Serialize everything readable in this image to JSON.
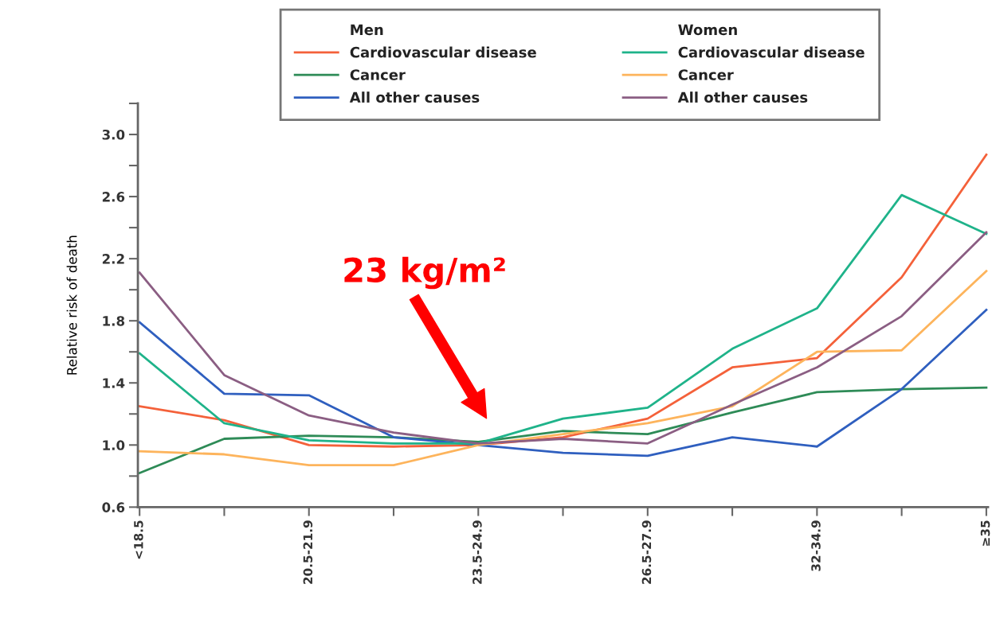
{
  "chart_data": {
    "type": "line",
    "ylabel": "Relative risk of death",
    "categories": [
      "<18.5",
      null,
      "20.5-21.9",
      null,
      "23.5-24.9",
      null,
      "26.5-27.9",
      null,
      "32-34.9",
      null,
      "≥35"
    ],
    "series": [
      {
        "name": "Cardiovascular disease",
        "color": "#f4613a",
        "values": [
          1.25,
          1.16,
          1.0,
          0.99,
          1.0,
          1.05,
          1.17,
          1.5,
          1.56,
          2.08,
          2.87
        ]
      },
      {
        "name": "Cancer",
        "color": "#2e8b57",
        "values": [
          0.82,
          1.04,
          1.06,
          1.05,
          1.02,
          1.09,
          1.07,
          1.21,
          1.34,
          1.36,
          1.37
        ]
      },
      {
        "name": "All other causes",
        "color": "#2f5fbf",
        "values": [
          1.79,
          1.33,
          1.32,
          1.05,
          1.0,
          0.95,
          0.93,
          1.05,
          0.99,
          1.36,
          1.87
        ]
      },
      {
        "name": "Cardiovascular disease",
        "color": "#1fb38a",
        "values": [
          1.59,
          1.14,
          1.03,
          1.01,
          1.01,
          1.17,
          1.24,
          1.62,
          1.88,
          2.61,
          2.36
        ]
      },
      {
        "name": "Cancer",
        "color": "#fdb45c",
        "values": [
          0.96,
          0.94,
          0.87,
          0.87,
          1.0,
          1.07,
          1.14,
          1.25,
          1.6,
          1.61,
          2.12
        ]
      },
      {
        "name": "All other causes",
        "color": "#8b5e83",
        "values": [
          2.11,
          1.45,
          1.19,
          1.08,
          1.01,
          1.04,
          1.01,
          1.26,
          1.5,
          1.83,
          2.37
        ]
      }
    ],
    "ylim": [
      0.6,
      3.2
    ],
    "yticks": [
      0.6,
      {
        "value": 0.8,
        "label": null
      },
      "1.0",
      {
        "value": 1.2,
        "label": null
      },
      1.4,
      {
        "value": 1.6,
        "label": null
      },
      1.8,
      {
        "value": 2.0,
        "label": null
      },
      2.2,
      {
        "value": 2.4,
        "label": null
      },
      2.6,
      {
        "value": 2.8,
        "label": null
      },
      "3.0",
      {
        "value": 3.2,
        "label": null
      }
    ],
    "annotations": [
      "23 kg/m²",
      "Men",
      "Women"
    ],
    "legend": "top",
    "grid": false,
    "marker": "none",
    "line_style": "solid"
  }
}
